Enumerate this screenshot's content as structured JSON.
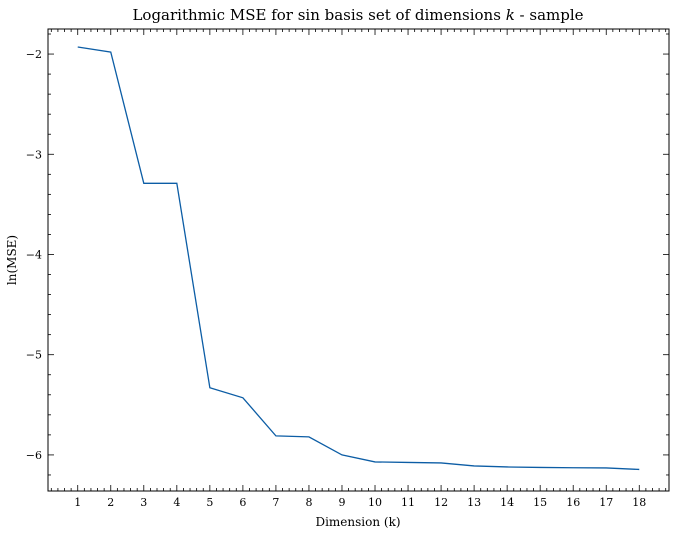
{
  "chart_data": {
    "type": "line",
    "title": "Logarithmic MSE for sin basis set of dimensions k - sample",
    "title_parts": {
      "prefix": "Logarithmic MSE for sin basis set of dimensions ",
      "variable": "k",
      "suffix": " - sample"
    },
    "xlabel": "Dimension (k)",
    "ylabel": "ln(MSE)",
    "x": [
      1,
      2,
      3,
      4,
      5,
      6,
      7,
      8,
      9,
      10,
      11,
      12,
      13,
      14,
      15,
      16,
      17,
      18
    ],
    "series": [
      {
        "name": "ln(MSE)",
        "color": "#0c5da5",
        "values": [
          -1.93,
          -1.98,
          -3.29,
          -3.29,
          -5.33,
          -5.43,
          -5.81,
          -5.82,
          -6.0,
          -6.07,
          -6.075,
          -6.08,
          -6.11,
          -6.12,
          -6.125,
          -6.128,
          -6.13,
          -6.145
        ]
      }
    ],
    "xlim": [
      0.1,
      18.9
    ],
    "ylim": [
      -6.36,
      -1.75
    ],
    "xticks": [
      1,
      2,
      3,
      4,
      5,
      6,
      7,
      8,
      9,
      10,
      11,
      12,
      13,
      14,
      15,
      16,
      17,
      18
    ],
    "yticks": [
      -6,
      -5,
      -4,
      -3,
      -2
    ],
    "ytick_labels": [
      "−6",
      "−5",
      "−4",
      "−3",
      "−2"
    ],
    "grid": false,
    "legend": "none"
  }
}
